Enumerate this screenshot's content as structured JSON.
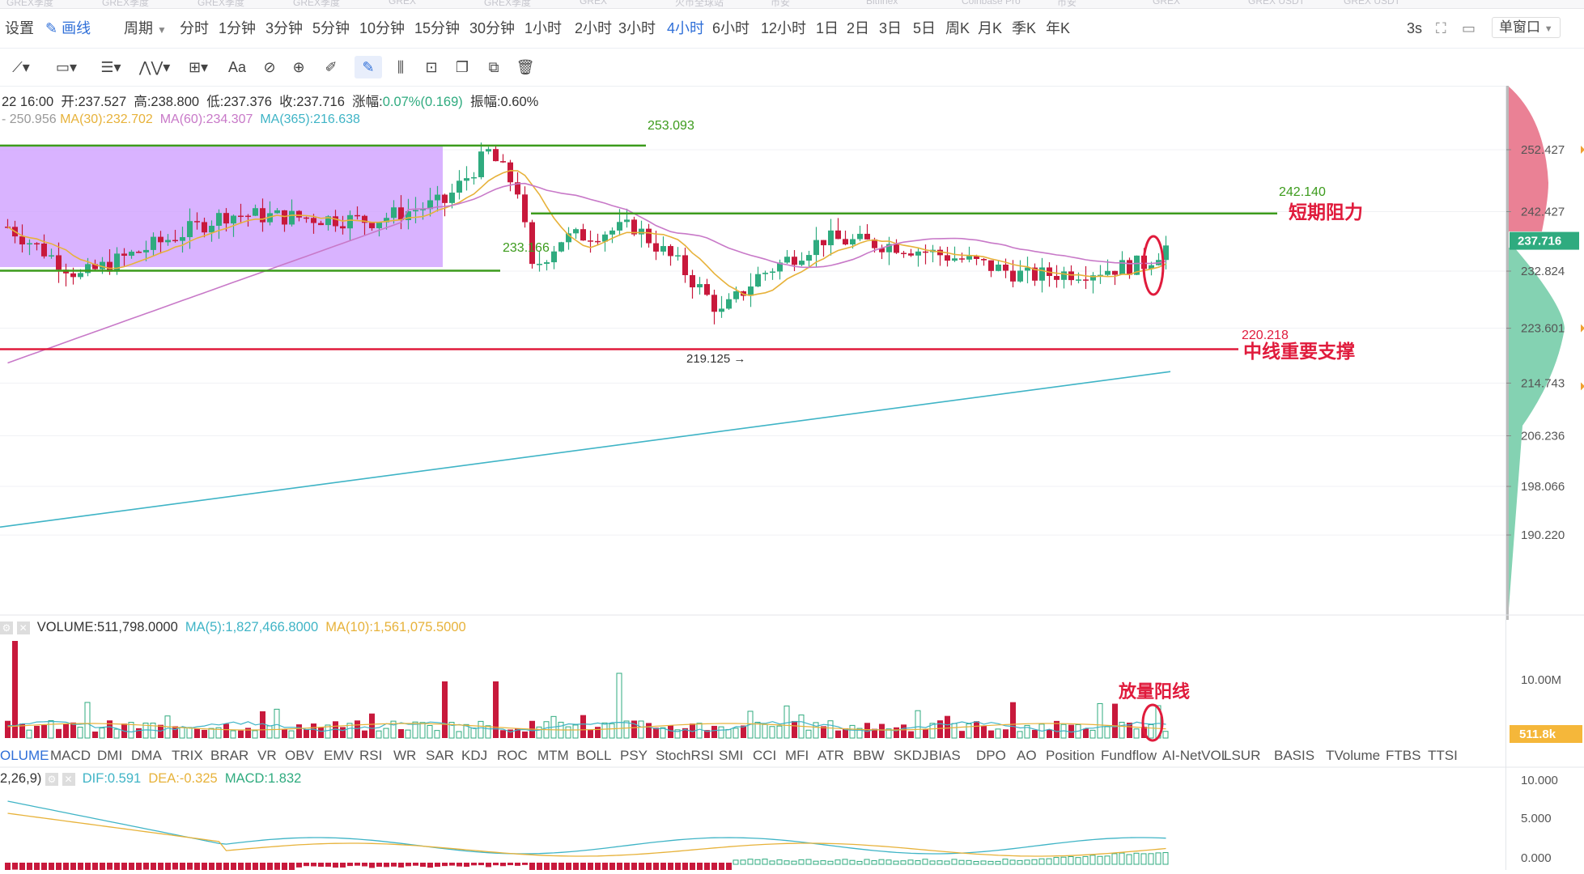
{
  "top_strip": [
    "GREX季度",
    "GREX季度",
    "GREX季度",
    "GREX季度",
    "GREX",
    "GREX季度",
    "GREX",
    "火币全球站",
    "币安",
    "Bitfinex",
    "Coinbase Pro",
    "币安",
    "GREX",
    "GREX USDT",
    "GREX USDT"
  ],
  "toolbar": {
    "settings": "设置",
    "draw": "画线",
    "period_label": "周期",
    "periods": [
      "分时",
      "1分钟",
      "3分钟",
      "5分钟",
      "10分钟",
      "15分钟",
      "30分钟",
      "1小时",
      "2小时",
      "3小时",
      "4小时",
      "6小时",
      "12小时",
      "1日",
      "2日",
      "3日",
      "5日",
      "周K",
      "月K",
      "季K",
      "年K"
    ],
    "active_period": "4小时",
    "refresh": "3s",
    "window_mode": "单窗口"
  },
  "ohlc": {
    "date": "22 16:00",
    "open_label": "开:",
    "open": "237.527",
    "high_label": "高:",
    "high": "238.800",
    "low_label": "低:",
    "low": "237.376",
    "close_label": "收:",
    "close": "237.716",
    "change_label": "涨幅:",
    "change": "0.07%(0.169)",
    "amplitude_label": "振幅:",
    "amplitude": "0.60%"
  },
  "ma_legend": {
    "ma_prefix": "- 250.956",
    "ma30": "MA(30):232.702",
    "ma60": "MA(60):234.307",
    "ma365": "MA(365):216.638"
  },
  "price_axis": [
    "252.427",
    "242.427",
    "232.824",
    "223.601",
    "214.743",
    "206.236",
    "198.066",
    "190.220"
  ],
  "current_price": "237.716",
  "annotations": {
    "high_level": "253.093",
    "resistance_level": "242.140",
    "resistance_text": "短期阻力",
    "mid_level": "233.166",
    "support_level": "220.218",
    "support_text": "中线重要支撑",
    "low_marker": "219.125 →",
    "volume_note": "放量阳线"
  },
  "volume_legend": {
    "volume": "VOLUME:511,798.0000",
    "ma5": "MA(5):1,827,466.8000",
    "ma10": "MA(10):1,561,075.5000"
  },
  "volume_axis": [
    "10.00M"
  ],
  "volume_current": "511.8k",
  "indicator_tabs": [
    "OLUME",
    "MACD",
    "DMI",
    "DMA",
    "TRIX",
    "BRAR",
    "VR",
    "OBV",
    "EMV",
    "RSI",
    "WR",
    "SAR",
    "KDJ",
    "ROC",
    "MTM",
    "BOLL",
    "PSY",
    "StochRSI",
    "SMI",
    "CCI",
    "MFI",
    "ATR",
    "BBW",
    "SKDJ",
    "BIAS",
    "DPO",
    "AO",
    "Position",
    "Fundflow",
    "AI-NetVOL",
    "LSUR",
    "BASIS",
    "TVolume",
    "FTBS",
    "TTSI"
  ],
  "active_tab": "OLUME",
  "macd_legend": {
    "params": "2,26,9)",
    "dif": "DIF:0.591",
    "dea": "DEA:-0.325",
    "macd": "MACD:1.832"
  },
  "macd_axis": [
    "10.000",
    "5.000",
    "0.000"
  ],
  "colors": {
    "up": "#2fab7f",
    "down": "#c8193c",
    "ma30": "#e7b23a",
    "ma60": "#c879c8",
    "ma365": "#3fb4c6",
    "box": "#cc99ff",
    "green_line": "#3c9b1c",
    "red_line": "#e01b3c",
    "accent": "#2f6fd8"
  }
}
